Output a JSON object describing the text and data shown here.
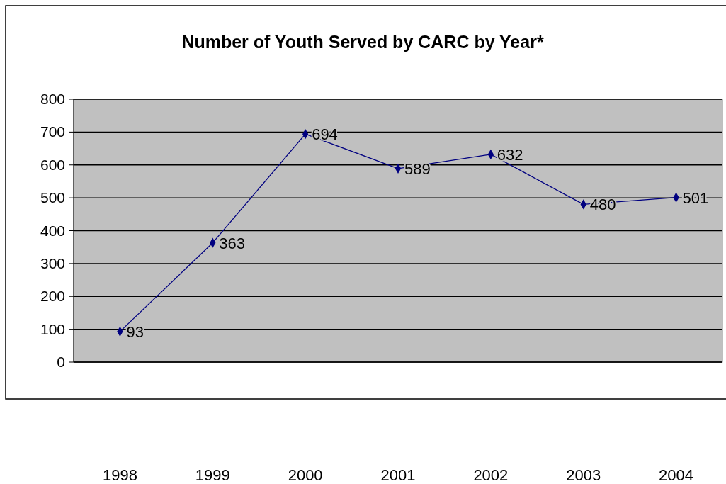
{
  "chart_data": {
    "type": "line",
    "title": "Number of Youth Served by CARC by Year*",
    "categories": [
      "1998",
      "1999",
      "2000",
      "2001",
      "2002",
      "2003",
      "2004"
    ],
    "series": [
      {
        "color": "#000080",
        "values": [
          93,
          363,
          694,
          589,
          632,
          480,
          501
        ]
      }
    ],
    "ylim": [
      0,
      800
    ],
    "yticks": [
      0,
      100,
      200,
      300,
      400,
      500,
      600,
      700,
      800
    ],
    "grid": "y",
    "marker": "diamond",
    "data_labels": true
  }
}
